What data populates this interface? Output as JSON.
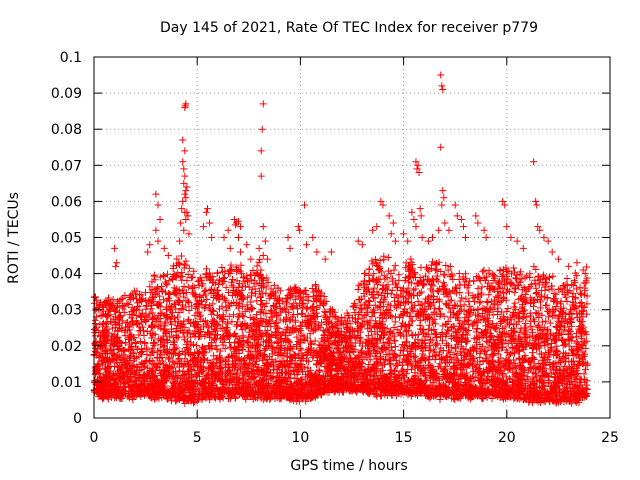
{
  "chart_data": {
    "type": "scatter",
    "title": "Day 145 of 2021, Rate Of TEC Index for receiver p779",
    "xlabel": "GPS time / hours",
    "ylabel": "ROTI / TECUs",
    "xlim": [
      0,
      25
    ],
    "ylim": [
      0,
      0.1
    ],
    "x_ticks": [
      "0",
      "5",
      "10",
      "15",
      "20",
      "25"
    ],
    "y_ticks": [
      "0",
      "0.01",
      "0.02",
      "0.03",
      "0.04",
      "0.05",
      "0.06",
      "0.07",
      "0.08",
      "0.09",
      "0.1"
    ],
    "grid": true,
    "marker": "+",
    "marker_color": "#ff0000",
    "series_name": "ROTI",
    "notable_points": [
      {
        "x": 4.3,
        "y": 0.077
      },
      {
        "x": 4.4,
        "y": 0.074
      },
      {
        "x": 4.35,
        "y": 0.065
      },
      {
        "x": 4.5,
        "y": 0.064
      },
      {
        "x": 4.45,
        "y": 0.063
      },
      {
        "x": 4.3,
        "y": 0.071
      },
      {
        "x": 4.35,
        "y": 0.069
      },
      {
        "x": 4.4,
        "y": 0.067
      },
      {
        "x": 4.4,
        "y": 0.062
      },
      {
        "x": 4.5,
        "y": 0.057
      },
      {
        "x": 4.25,
        "y": 0.058
      },
      {
        "x": 4.35,
        "y": 0.052
      },
      {
        "x": 4.45,
        "y": 0.055
      },
      {
        "x": 4.45,
        "y": 0.061
      },
      {
        "x": 4.55,
        "y": 0.056
      },
      {
        "x": 4.2,
        "y": 0.054
      },
      {
        "x": 4.6,
        "y": 0.051
      },
      {
        "x": 4.15,
        "y": 0.049
      },
      {
        "x": 4.4,
        "y": 0.057
      },
      {
        "x": 4.3,
        "y": 0.06
      },
      {
        "x": 4.4,
        "y": 0.086
      },
      {
        "x": 4.45,
        "y": 0.087
      },
      {
        "x": 4.42,
        "y": 0.0865
      },
      {
        "x": 3.0,
        "y": 0.062
      },
      {
        "x": 3.1,
        "y": 0.059
      },
      {
        "x": 3.2,
        "y": 0.055
      },
      {
        "x": 3.0,
        "y": 0.052
      },
      {
        "x": 3.1,
        "y": 0.049
      },
      {
        "x": 2.7,
        "y": 0.048
      },
      {
        "x": 2.6,
        "y": 0.046
      },
      {
        "x": 3.4,
        "y": 0.047
      },
      {
        "x": 3.6,
        "y": 0.045
      },
      {
        "x": 1.0,
        "y": 0.047
      },
      {
        "x": 1.1,
        "y": 0.043
      },
      {
        "x": 1.05,
        "y": 0.042
      },
      {
        "x": 5.5,
        "y": 0.058
      },
      {
        "x": 5.45,
        "y": 0.057
      },
      {
        "x": 5.6,
        "y": 0.054
      },
      {
        "x": 5.3,
        "y": 0.053
      },
      {
        "x": 5.7,
        "y": 0.05
      },
      {
        "x": 6.5,
        "y": 0.052
      },
      {
        "x": 6.3,
        "y": 0.05
      },
      {
        "x": 6.6,
        "y": 0.047
      },
      {
        "x": 6.8,
        "y": 0.055
      },
      {
        "x": 6.9,
        "y": 0.054
      },
      {
        "x": 7.0,
        "y": 0.0545
      },
      {
        "x": 6.85,
        "y": 0.0535
      },
      {
        "x": 7.1,
        "y": 0.053
      },
      {
        "x": 7.0,
        "y": 0.05
      },
      {
        "x": 7.1,
        "y": 0.046
      },
      {
        "x": 7.4,
        "y": 0.048
      },
      {
        "x": 7.6,
        "y": 0.044
      },
      {
        "x": 8.2,
        "y": 0.087
      },
      {
        "x": 8.15,
        "y": 0.08
      },
      {
        "x": 8.1,
        "y": 0.074
      },
      {
        "x": 8.1,
        "y": 0.067
      },
      {
        "x": 8.2,
        "y": 0.053
      },
      {
        "x": 8.3,
        "y": 0.049
      },
      {
        "x": 8.0,
        "y": 0.047
      },
      {
        "x": 8.4,
        "y": 0.044
      },
      {
        "x": 8.2,
        "y": 0.045
      },
      {
        "x": 9.4,
        "y": 0.05
      },
      {
        "x": 9.5,
        "y": 0.047
      },
      {
        "x": 9.9,
        "y": 0.053
      },
      {
        "x": 9.95,
        "y": 0.052
      },
      {
        "x": 10.2,
        "y": 0.059
      },
      {
        "x": 10.3,
        "y": 0.048
      },
      {
        "x": 10.6,
        "y": 0.05
      },
      {
        "x": 10.8,
        "y": 0.046
      },
      {
        "x": 11.2,
        "y": 0.044
      },
      {
        "x": 11.5,
        "y": 0.046
      },
      {
        "x": 12.8,
        "y": 0.049
      },
      {
        "x": 13.0,
        "y": 0.048
      },
      {
        "x": 13.5,
        "y": 0.052
      },
      {
        "x": 13.7,
        "y": 0.053
      },
      {
        "x": 13.9,
        "y": 0.06
      },
      {
        "x": 14.0,
        "y": 0.059
      },
      {
        "x": 14.3,
        "y": 0.056
      },
      {
        "x": 14.5,
        "y": 0.054
      },
      {
        "x": 14.4,
        "y": 0.051
      },
      {
        "x": 14.6,
        "y": 0.049
      },
      {
        "x": 15.4,
        "y": 0.057
      },
      {
        "x": 15.5,
        "y": 0.055
      },
      {
        "x": 15.6,
        "y": 0.053
      },
      {
        "x": 15.9,
        "y": 0.05
      },
      {
        "x": 15.0,
        "y": 0.051
      },
      {
        "x": 15.2,
        "y": 0.049
      },
      {
        "x": 15.6,
        "y": 0.071
      },
      {
        "x": 15.7,
        "y": 0.07
      },
      {
        "x": 15.65,
        "y": 0.069
      },
      {
        "x": 15.75,
        "y": 0.068
      },
      {
        "x": 15.8,
        "y": 0.058
      },
      {
        "x": 15.85,
        "y": 0.056
      },
      {
        "x": 16.2,
        "y": 0.049
      },
      {
        "x": 16.4,
        "y": 0.05
      },
      {
        "x": 16.8,
        "y": 0.095
      },
      {
        "x": 16.85,
        "y": 0.092
      },
      {
        "x": 16.9,
        "y": 0.091
      },
      {
        "x": 16.8,
        "y": 0.075
      },
      {
        "x": 16.9,
        "y": 0.063
      },
      {
        "x": 16.95,
        "y": 0.061
      },
      {
        "x": 16.85,
        "y": 0.059
      },
      {
        "x": 17.0,
        "y": 0.054
      },
      {
        "x": 16.7,
        "y": 0.052
      },
      {
        "x": 17.2,
        "y": 0.052
      },
      {
        "x": 17.5,
        "y": 0.059
      },
      {
        "x": 17.6,
        "y": 0.056
      },
      {
        "x": 17.8,
        "y": 0.055
      },
      {
        "x": 17.9,
        "y": 0.053
      },
      {
        "x": 18.0,
        "y": 0.05
      },
      {
        "x": 18.5,
        "y": 0.056
      },
      {
        "x": 18.6,
        "y": 0.054
      },
      {
        "x": 18.9,
        "y": 0.052
      },
      {
        "x": 19.0,
        "y": 0.05
      },
      {
        "x": 19.8,
        "y": 0.06
      },
      {
        "x": 19.9,
        "y": 0.059
      },
      {
        "x": 20.0,
        "y": 0.053
      },
      {
        "x": 20.2,
        "y": 0.05
      },
      {
        "x": 20.5,
        "y": 0.049
      },
      {
        "x": 20.8,
        "y": 0.047
      },
      {
        "x": 21.3,
        "y": 0.071
      },
      {
        "x": 21.4,
        "y": 0.06
      },
      {
        "x": 21.45,
        "y": 0.059
      },
      {
        "x": 21.5,
        "y": 0.053
      },
      {
        "x": 21.6,
        "y": 0.052
      },
      {
        "x": 21.8,
        "y": 0.05
      },
      {
        "x": 22.0,
        "y": 0.049
      },
      {
        "x": 22.2,
        "y": 0.046
      },
      {
        "x": 22.5,
        "y": 0.044
      },
      {
        "x": 23.0,
        "y": 0.042
      },
      {
        "x": 23.4,
        "y": 0.043
      },
      {
        "x": 23.7,
        "y": 0.041
      },
      {
        "x": 23.8,
        "y": 0.04
      },
      {
        "x": 23.85,
        "y": 0.038
      }
    ],
    "envelope": {
      "description": "dense band of ROTI samples at 1-minute resolution",
      "x": [
        0,
        0.5,
        1,
        1.5,
        2,
        2.5,
        3,
        3.5,
        4,
        4.5,
        5,
        5.5,
        6,
        6.5,
        7,
        7.5,
        8,
        8.5,
        9,
        9.5,
        10,
        10.5,
        11,
        11.5,
        12,
        12.5,
        13,
        13.5,
        14,
        14.5,
        15,
        15.5,
        16,
        16.5,
        17,
        17.5,
        18,
        18.5,
        19,
        19.5,
        20,
        20.5,
        21,
        21.5,
        22,
        22.5,
        23,
        23.5,
        23.9
      ],
      "y_low": [
        0.007,
        0.006,
        0.006,
        0.006,
        0.006,
        0.006,
        0.006,
        0.006,
        0.005,
        0.005,
        0.005,
        0.006,
        0.006,
        0.006,
        0.006,
        0.006,
        0.006,
        0.006,
        0.006,
        0.006,
        0.005,
        0.006,
        0.007,
        0.008,
        0.008,
        0.008,
        0.008,
        0.007,
        0.007,
        0.007,
        0.007,
        0.007,
        0.007,
        0.006,
        0.006,
        0.006,
        0.006,
        0.006,
        0.006,
        0.006,
        0.006,
        0.006,
        0.005,
        0.005,
        0.005,
        0.005,
        0.005,
        0.005,
        0.006
      ],
      "y_high": [
        0.035,
        0.033,
        0.034,
        0.034,
        0.035,
        0.036,
        0.04,
        0.04,
        0.044,
        0.046,
        0.038,
        0.042,
        0.04,
        0.044,
        0.042,
        0.04,
        0.044,
        0.038,
        0.036,
        0.036,
        0.037,
        0.038,
        0.036,
        0.03,
        0.029,
        0.03,
        0.04,
        0.044,
        0.046,
        0.044,
        0.042,
        0.044,
        0.042,
        0.044,
        0.044,
        0.04,
        0.04,
        0.042,
        0.042,
        0.04,
        0.042,
        0.04,
        0.042,
        0.042,
        0.04,
        0.038,
        0.038,
        0.04,
        0.042
      ]
    }
  }
}
